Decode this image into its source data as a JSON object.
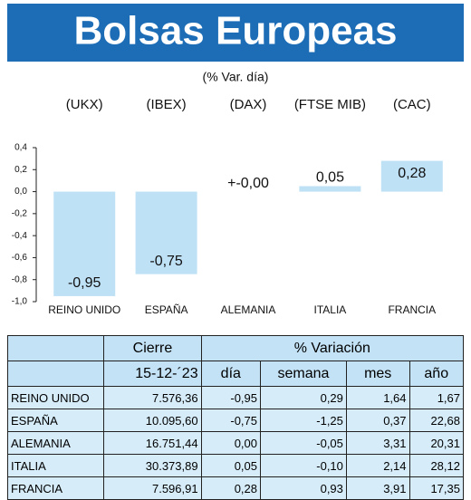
{
  "chart_data": {
    "type": "bar",
    "title": "Bolsas Europeas",
    "subtitle": "(% Var. día)",
    "indices": [
      "(UKX)",
      "(IBEX)",
      "(DAX)",
      "(FTSE MIB)",
      "(CAC)"
    ],
    "categories": [
      "REINO UNIDO",
      "ESPAÑA",
      "ALEMANIA",
      "ITALIA",
      "FRANCIA"
    ],
    "values": [
      -0.95,
      -0.75,
      0,
      0.05,
      0.28
    ],
    "value_labels": [
      "-0,95",
      "-0,75",
      "+-0,00",
      "0,05",
      "0,28"
    ],
    "color": "#bfe1f6",
    "ylim": [
      -1.0,
      0.4
    ],
    "yticks": [
      {
        "value": 0.4,
        "label": "0,4"
      },
      {
        "value": 0.2,
        "label": "0,2"
      },
      {
        "value": 0.0,
        "label": "0,0"
      },
      {
        "value": -0.2,
        "label": "-0,2"
      },
      {
        "value": -0.4,
        "label": "-0,4"
      },
      {
        "value": -0.6,
        "label": "-0,6"
      },
      {
        "value": -0.8,
        "label": "-0,8"
      },
      {
        "value": -1.0,
        "label": "-1,0"
      }
    ],
    "grid": false
  },
  "table": {
    "header": [
      "Cierre",
      "% Variación"
    ],
    "subheader": [
      "15-12-´23",
      "día",
      "semana",
      "mes",
      "año"
    ],
    "rows": [
      [
        "REINO UNIDO",
        "7.576,36",
        "-0,95",
        "0,29",
        "1,64",
        "1,67"
      ],
      [
        "ESPAÑA",
        "10.095,60",
        "-0,75",
        "-1,25",
        "0,37",
        "22,68"
      ],
      [
        "ALEMANIA",
        "16.751,44",
        "0,00",
        "-0,05",
        "3,31",
        "20,31"
      ],
      [
        "ITALIA",
        "30.373,89",
        "0,05",
        "-0,10",
        "2,14",
        "28,12"
      ],
      [
        "FRANCIA",
        "7.596,91",
        "0,28",
        "0,93",
        "3,91",
        "17,35"
      ]
    ]
  }
}
